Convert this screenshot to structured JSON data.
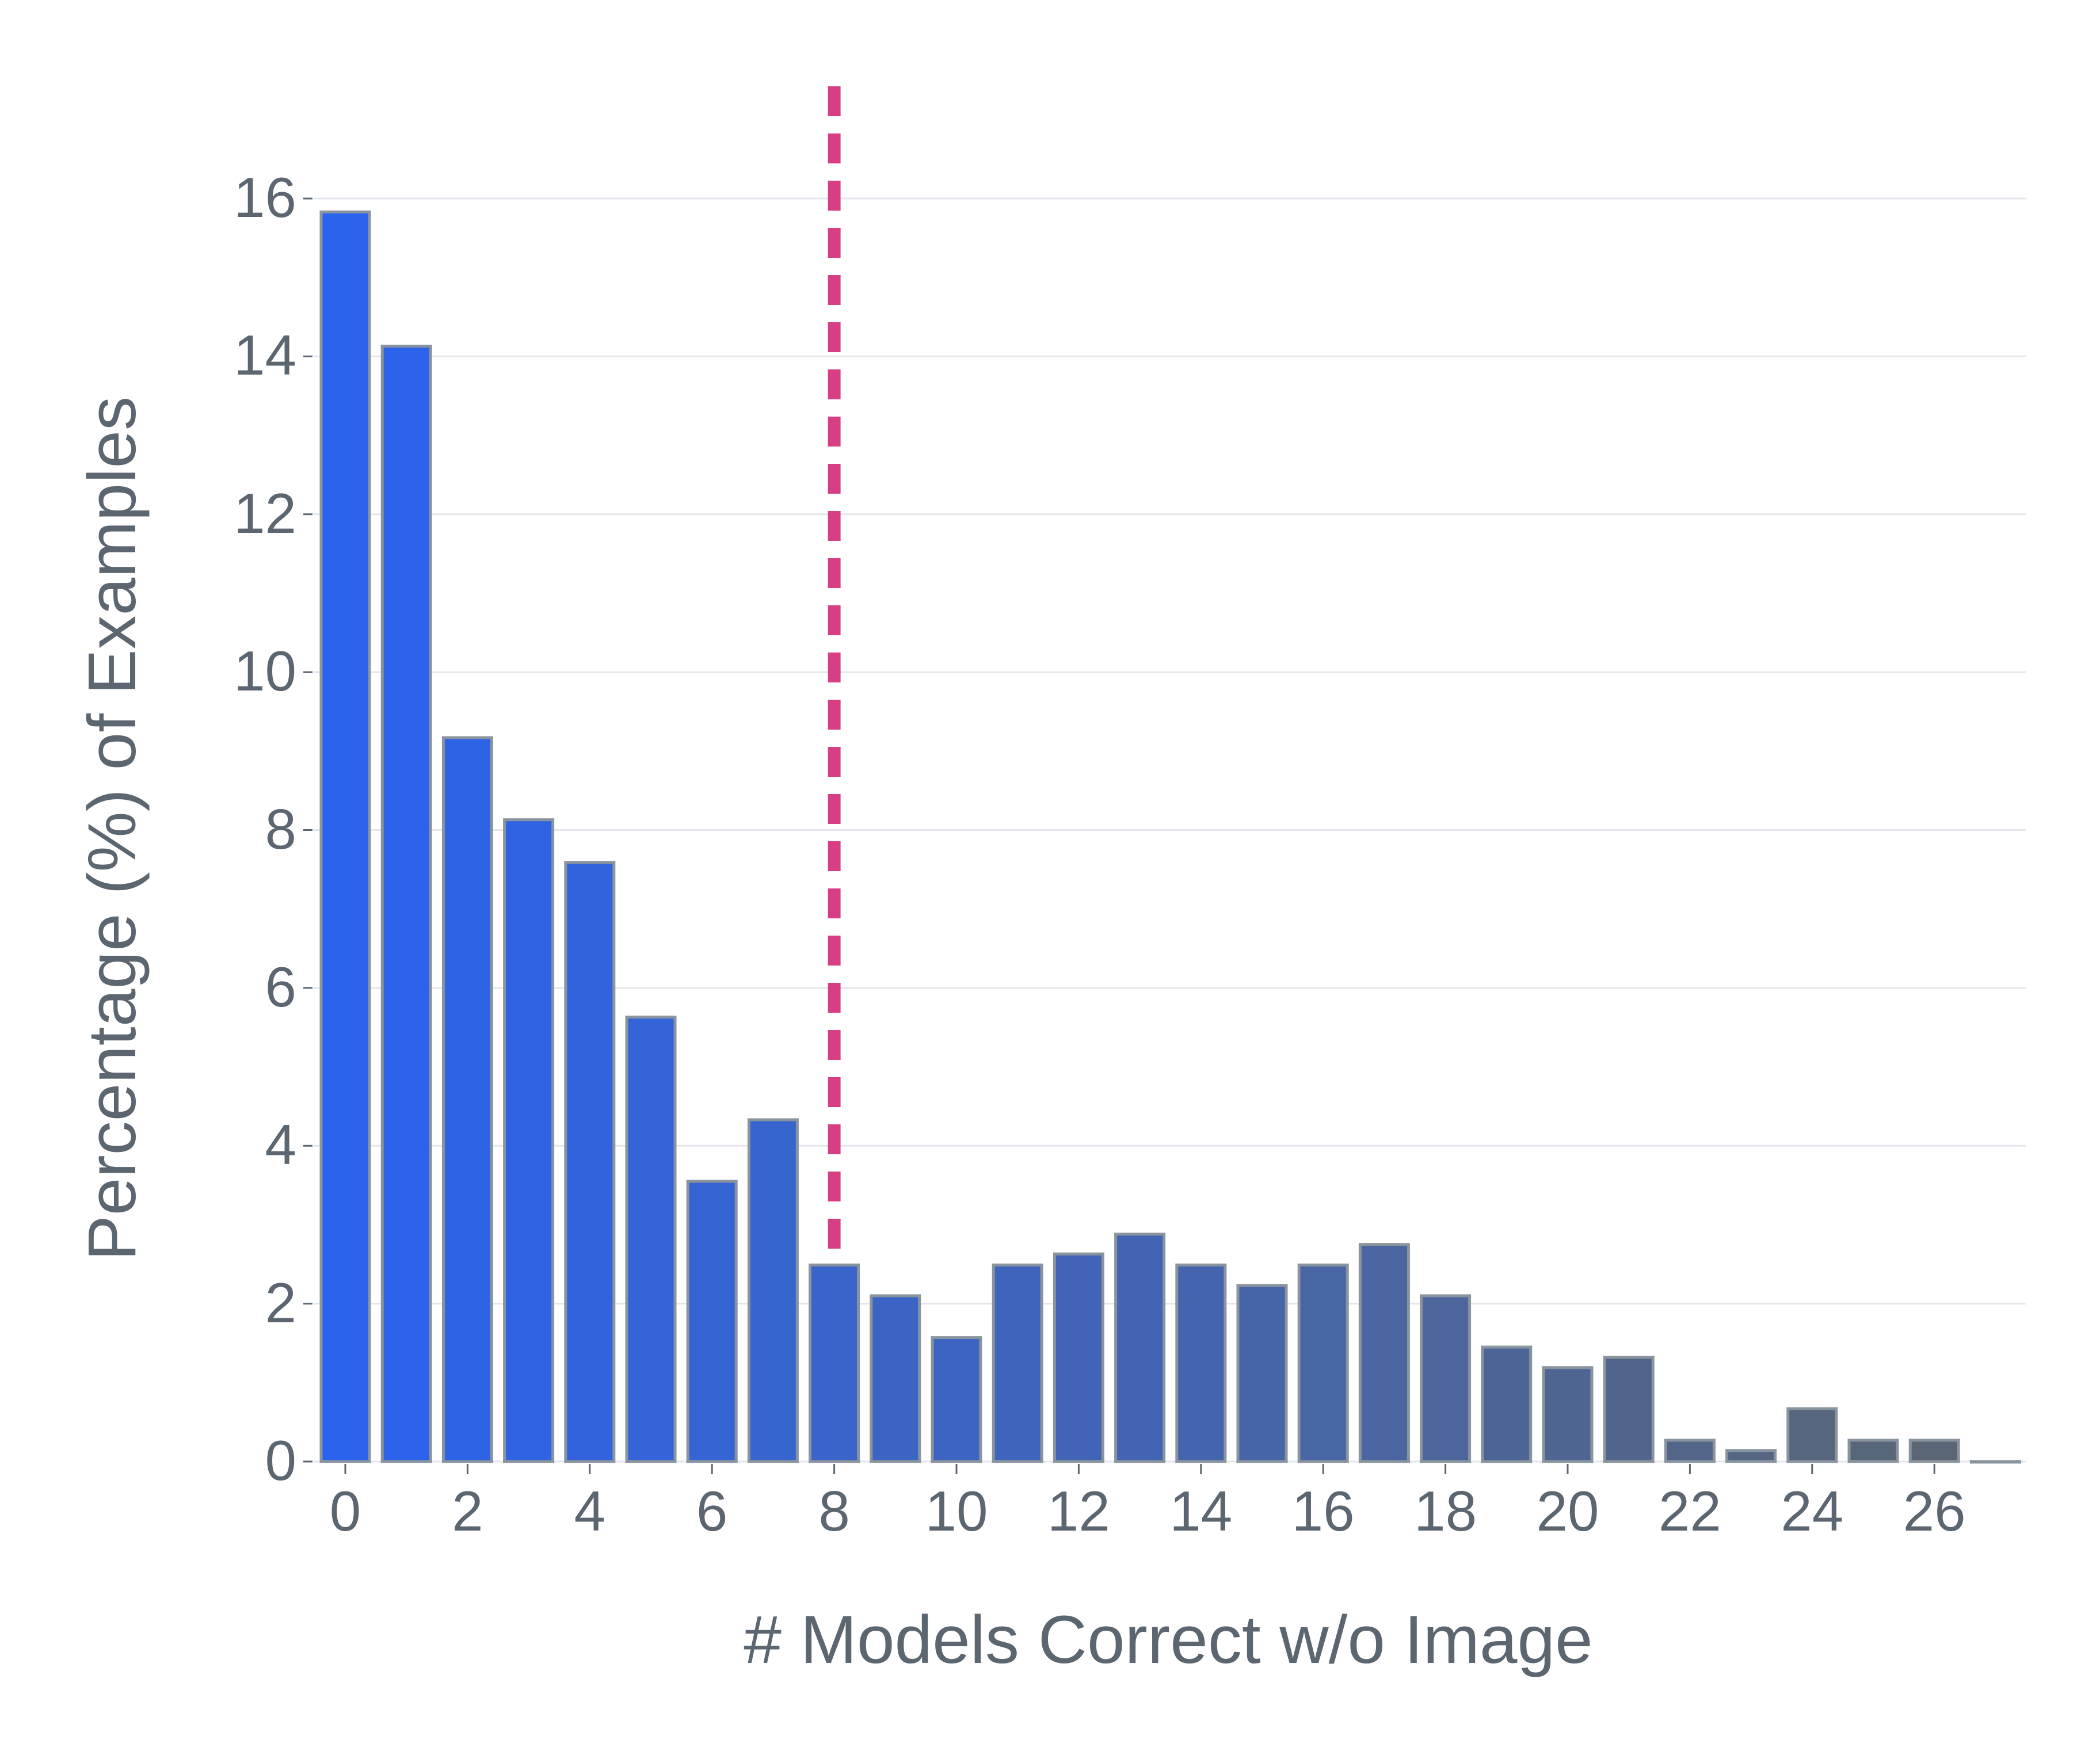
{
  "chart_data": {
    "type": "bar",
    "title": "",
    "xlabel": "# Models Correct w/o Image",
    "ylabel": "Percentage (%) of Examples",
    "categories": [
      0,
      1,
      2,
      3,
      4,
      5,
      6,
      7,
      8,
      9,
      10,
      11,
      12,
      13,
      14,
      15,
      16,
      17,
      18,
      19,
      20,
      21,
      22,
      23,
      24,
      25,
      26,
      27
    ],
    "values": [
      15.83,
      14.13,
      9.17,
      8.13,
      7.59,
      5.63,
      3.55,
      4.33,
      2.49,
      2.1,
      1.57,
      2.49,
      2.63,
      2.88,
      2.49,
      2.23,
      2.49,
      2.75,
      2.1,
      1.45,
      1.19,
      1.32,
      0.27,
      0.14,
      0.67,
      0.27,
      0.27,
      0.0
    ],
    "ylim": [
      0,
      16
    ],
    "yticks": [
      0,
      2,
      4,
      6,
      8,
      10,
      12,
      14,
      16
    ],
    "xticks": [
      0,
      2,
      4,
      6,
      8,
      10,
      12,
      14,
      16,
      18,
      20,
      22,
      24,
      26
    ],
    "grid": "horizontal",
    "legend": null,
    "annotations": [
      {
        "type": "vertical-dashed-line",
        "x": 8,
        "color": "#d63f84"
      }
    ],
    "colors": {
      "gradient_start": "#2b63ef",
      "gradient_end": "#5c6670",
      "bar_edge": "#8a949e",
      "gridline": "#e3e6ec",
      "text": "#5c6670",
      "threshold_line": "#d63f84"
    }
  }
}
